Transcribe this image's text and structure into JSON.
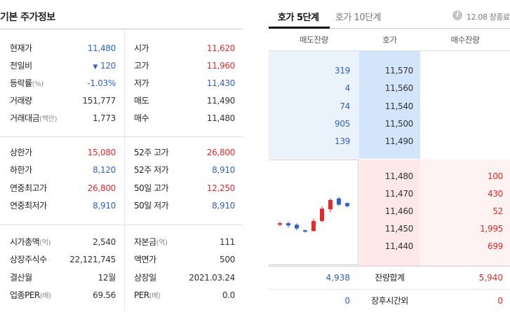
{
  "basic": {
    "title": "기본 주가정보",
    "rows": [
      {
        "l1": "현재가",
        "l1s": "",
        "v1": "11,480",
        "v1c": "down",
        "l2": "시가",
        "l2s": "",
        "v2": "11,620",
        "v2c": "up"
      },
      {
        "l1": "전일비",
        "l1s": "",
        "v1": "120",
        "v1c": "down",
        "l2": "고가",
        "l2s": "",
        "v2": "11,960",
        "v2c": "up"
      },
      {
        "l1": "등락률",
        "l1s": "(%)",
        "v1": "-1.03%",
        "v1c": "down",
        "l2": "저가",
        "l2s": "",
        "v2": "11,430",
        "v2c": "down"
      },
      {
        "l1": "거래량",
        "l1s": "",
        "v1": "151,777",
        "v1c": "",
        "l2": "매도",
        "l2s": "",
        "v2": "11,490",
        "v2c": ""
      },
      {
        "l1": "거래대금",
        "l1s": "(백만)",
        "v1": "1,773",
        "v1c": "",
        "l2": "매수",
        "l2s": "",
        "v2": "11,480",
        "v2c": ""
      },
      {
        "l1": "상한가",
        "l1s": "",
        "v1": "15,080",
        "v1c": "up",
        "l2": "52주 고가",
        "l2s": "",
        "v2": "26,800",
        "v2c": "up"
      },
      {
        "l1": "하한가",
        "l1s": "",
        "v1": "8,120",
        "v1c": "down",
        "l2": "52주 저가",
        "l2s": "",
        "v2": "8,910",
        "v2c": "down"
      },
      {
        "l1": "연중최고가",
        "l1s": "",
        "v1": "26,800",
        "v1c": "up",
        "l2": "50일 고가",
        "l2s": "",
        "v2": "12,250",
        "v2c": "up"
      },
      {
        "l1": "연중최저가",
        "l1s": "",
        "v1": "8,910",
        "v1c": "down",
        "l2": "50일 저가",
        "l2s": "",
        "v2": "8,910",
        "v2c": "down"
      },
      {
        "l1": "시가총액",
        "l1s": "(억)",
        "v1": "2,540",
        "v1c": "",
        "l2": "자본금",
        "l2s": "(억)",
        "v2": "111",
        "v2c": ""
      },
      {
        "l1": "상장주식수",
        "l1s": "",
        "v1": "22,121,745",
        "v1c": "",
        "l2": "액면가",
        "l2s": "",
        "v2": "500",
        "v2c": ""
      },
      {
        "l1": "결산월",
        "l1s": "",
        "v1": "12월",
        "v1c": "",
        "l2": "상장일",
        "l2s": "",
        "v2": "2021.03.24",
        "v2c": ""
      },
      {
        "l1": "업종PER",
        "l1s": "(배)",
        "v1": "69.56",
        "v1c": "",
        "l2": "PER",
        "l2s": "(배)",
        "v2": "0.0",
        "v2c": ""
      }
    ]
  },
  "orderbook": {
    "tabs": [
      "호가 5단계",
      "호가 10단계"
    ],
    "info_icon": "i",
    "time_label": "12.08 장종료",
    "headers": {
      "sell": "매도잔량",
      "price": "호가",
      "buy": "매수잔량"
    },
    "asks": [
      {
        "qty": "319",
        "price": "11,570"
      },
      {
        "qty": "4",
        "price": "11,560"
      },
      {
        "qty": "74",
        "price": "11,540"
      },
      {
        "qty": "905",
        "price": "11,500"
      },
      {
        "qty": "139",
        "price": "11,490"
      }
    ],
    "bids": [
      {
        "price": "11,480",
        "qty": "100"
      },
      {
        "price": "11,470",
        "qty": "430"
      },
      {
        "price": "11,460",
        "qty": "52"
      },
      {
        "price": "11,450",
        "qty": "1,995"
      },
      {
        "price": "11,440",
        "qty": "699"
      }
    ],
    "totals": {
      "sell": "4,938",
      "label": "잔량합계",
      "buy": "5,940"
    },
    "after_hours": {
      "sell": "0",
      "label": "장후시간외",
      "buy": "0"
    }
  },
  "mini_chart": {
    "type": "candlestick",
    "candles": [
      {
        "open": 11420,
        "close": 11425,
        "high": 11430,
        "low": 11415,
        "dir": "up"
      },
      {
        "open": 11425,
        "close": 11418,
        "high": 11430,
        "low": 11410,
        "dir": "down"
      },
      {
        "open": 11420,
        "close": 11408,
        "high": 11425,
        "low": 11402,
        "dir": "down"
      },
      {
        "open": 11402,
        "close": 11398,
        "high": 11405,
        "low": 11395,
        "dir": "down"
      },
      {
        "open": 11400,
        "close": 11432,
        "high": 11440,
        "low": 11398,
        "dir": "up"
      },
      {
        "open": 11432,
        "close": 11472,
        "high": 11480,
        "low": 11428,
        "dir": "up"
      },
      {
        "open": 11470,
        "close": 11500,
        "high": 11505,
        "low": 11460,
        "dir": "up"
      },
      {
        "open": 11505,
        "close": 11485,
        "high": 11510,
        "low": 11480,
        "dir": "down"
      },
      {
        "open": 11490,
        "close": 11480,
        "high": 11492,
        "low": 11476,
        "dir": "down"
      }
    ],
    "colors": {
      "up": "#e5292b",
      "down": "#2f5fcf"
    }
  },
  "colors": {
    "up": "#e5292b",
    "down": "#2f5fcf",
    "ask_bg": "#eaf2fc",
    "ask_price_bg": "#d3e5fb",
    "bid_price_bg": "#fde7e7",
    "bid_bg": "#fff2f2"
  }
}
